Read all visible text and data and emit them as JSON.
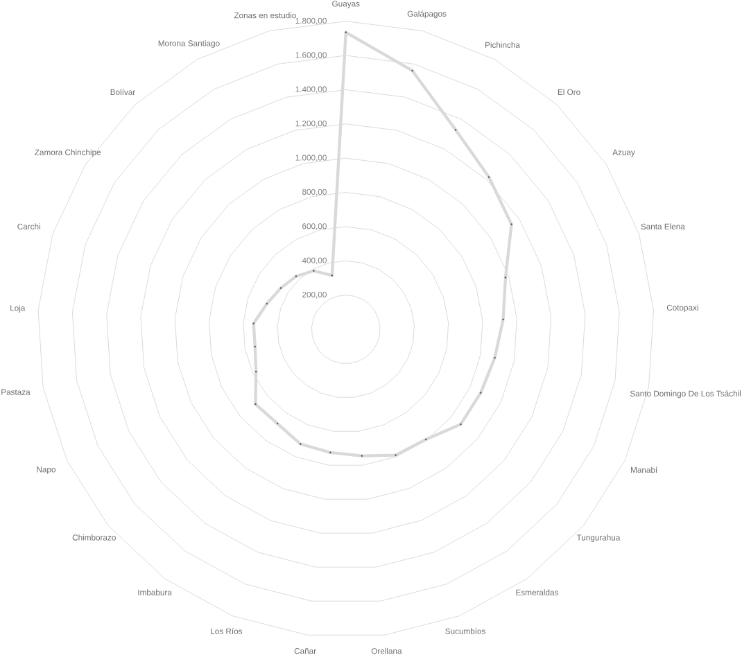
{
  "chart_data": {
    "type": "radar",
    "categories": [
      "Guayas",
      "Galápagos",
      "Pichincha",
      "El Oro",
      "Azuay",
      "Santa Elena",
      "Cotopaxi",
      "Santo Domingo De Los Tsáchil",
      "Manabí",
      "Tungurahua",
      "Esmeraldas",
      "Sucumbíos",
      "Orellana",
      "Cañar",
      "Los Ríos",
      "Imbabura",
      "Chimborazo",
      "Napo",
      "Pastaza",
      "Loja",
      "Carchi",
      "Zamora Chinchipe",
      "Bolívar",
      "Morona Santiago",
      "Zonas en estudio"
    ],
    "series": [
      {
        "color": "#d9d9d9",
        "values": [
          1735,
          1560,
          1330,
          1220,
          1145,
          980,
          920,
          885,
          870,
          870,
          795,
          790,
          745,
          725,
          720,
          680,
          685,
          580,
          540,
          540,
          485,
          450,
          425,
          390,
          325
        ]
      }
    ],
    "ylim": [
      0,
      1800
    ],
    "yticks": [
      {
        "value": 200,
        "label": "200,00"
      },
      {
        "value": 400,
        "label": "400,00"
      },
      {
        "value": 600,
        "label": "600,00"
      },
      {
        "value": 800,
        "label": "800,00"
      },
      {
        "value": 1000,
        "label": "1.000,00"
      },
      {
        "value": 1200,
        "label": "1.200,00"
      },
      {
        "value": 1400,
        "label": "1.400,00"
      },
      {
        "value": 1600,
        "label": "1.600,00"
      },
      {
        "value": 1800,
        "label": "1.800,00"
      }
    ],
    "grid": true,
    "marker": "circle"
  }
}
